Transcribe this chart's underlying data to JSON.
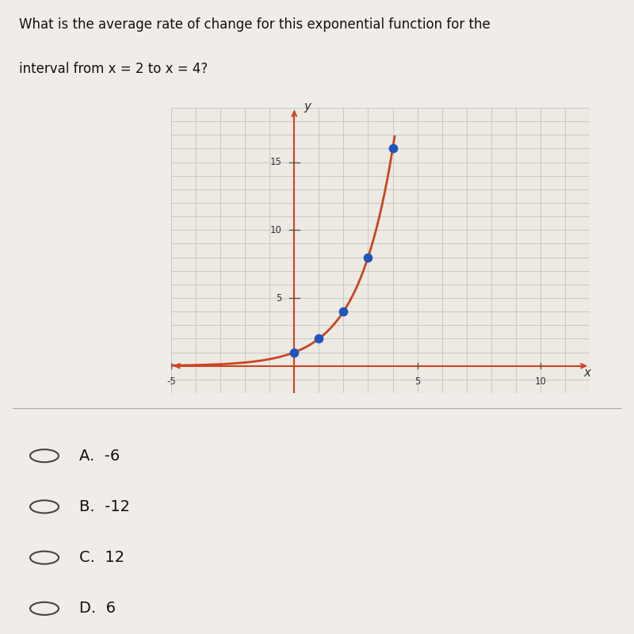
{
  "title_line1": "What is the average rate of change for this exponential function for the",
  "title_line2": "interval from x = 2 to x = 4?",
  "question_fontsize": 12,
  "func": "2^x",
  "x_points": [
    0,
    1,
    2,
    3,
    4
  ],
  "y_points": [
    1,
    2,
    4,
    8,
    16
  ],
  "x_min": -5,
  "x_max": 12,
  "y_min": -2,
  "y_max": 19,
  "x_ticks_labeled": [
    -5,
    5,
    10
  ],
  "y_ticks_labeled": [
    5,
    10,
    15
  ],
  "curve_color": "#c84520",
  "point_color": "#2255bb",
  "point_size": 55,
  "grid_major_color": "#bbbbbb",
  "grid_minor_color": "#dddddd",
  "bg_color": "#ede9e3",
  "axis_color": "#c84520",
  "tick_color": "#555555",
  "label_color": "#333333",
  "choices": [
    "A.  -6",
    "B.  -12",
    "C.  12",
    "D.  6"
  ],
  "choice_fontsize": 14,
  "fig_bg": "#f0ede8"
}
